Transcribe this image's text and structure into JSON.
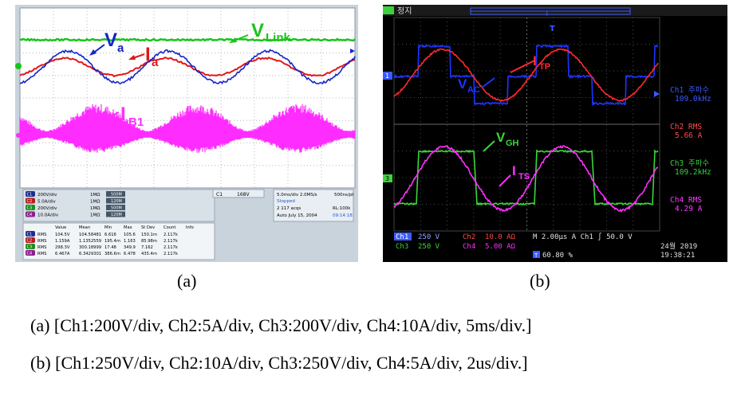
{
  "panel_a": {
    "trace_labels": {
      "vlink": "V",
      "vlink_sub": "Link",
      "va": "V",
      "va_sub": "a",
      "ia": "I",
      "ia_sub": "a",
      "ib1": "I",
      "ib1_sub": "B1"
    },
    "channel_settings": [
      {
        "badge": "C1",
        "scale": "200V/div",
        "imp": "1MΩ",
        "bw": "500M"
      },
      {
        "badge": "C2",
        "scale": "5.0A/div",
        "imp": "1MΩ",
        "bw": "120M"
      },
      {
        "badge": "C3",
        "scale": "200V/div",
        "imp": "1MΩ",
        "bw": "500M"
      },
      {
        "badge": "C4",
        "scale": "10.0A/div",
        "imp": "1MΩ",
        "bw": "120M"
      }
    ],
    "trigger": {
      "badge": "C1",
      "level": "168V"
    },
    "timebase": {
      "line1": "5.0ms/div  2.0MS/s",
      "line1b": "500ns/pt",
      "mode": "Stopped",
      "acqs": "2 117 acqs",
      "rl": "RL:100k",
      "auto": "Auto   July 15, 2004",
      "time": "09:14:18"
    },
    "meas_headers": [
      "Value",
      "Mean",
      "Min",
      "Max",
      "St Dev",
      "Count",
      "Info"
    ],
    "meas_rows": [
      {
        "ch": "C1",
        "type": "RMS",
        "value": "104.5V",
        "mean": "104.58481",
        "min": "6.616",
        "max": "105.6",
        "std": "150.1m",
        "count": "2.117k"
      },
      {
        "ch": "C2",
        "type": "RMS",
        "value": "1.159A",
        "mean": "1.1352559",
        "min": "195.4m",
        "max": "1.163",
        "std": "85.98m",
        "count": "2.117k"
      },
      {
        "ch": "C3",
        "type": "RMS",
        "value": "298.3V",
        "mean": "300.18999",
        "min": "17.48",
        "max": "349.9",
        "std": "7.162",
        "count": "2.117k"
      },
      {
        "ch": "C4",
        "type": "RMS",
        "value": "6.467A",
        "mean": "6.3429301",
        "min": "386.6m",
        "max": "6.478",
        "std": "435.4m",
        "count": "2.117k"
      }
    ],
    "label": "(a)"
  },
  "panel_b": {
    "status": "정지",
    "trace_labels": {
      "itp": "I",
      "itp_sub": "TP",
      "vac": "V",
      "vac_sub": "AC",
      "vgh": "V",
      "vgh_sub": "GH",
      "its": "I",
      "its_sub": "TS"
    },
    "side_readouts": [
      {
        "line1": "Ch1 주파수",
        "line2": "109.0kHz",
        "color": "#3b5bff"
      },
      {
        "line1": "Ch2 RMS",
        "line2": "5.66 A",
        "color": "#ff4a4a"
      },
      {
        "line1": "Ch3 주파수",
        "line2": "109.2kHz",
        "color": "#3cd23c"
      },
      {
        "line1": "Ch4 RMS",
        "line2": "4.29 A",
        "color": "#ff38ff"
      }
    ],
    "bottom": {
      "ch1": "Ch1",
      "ch1_val": "250 V",
      "ch2": "Ch2",
      "ch2_val": "10.0 AΩ",
      "ch3": "Ch3",
      "ch3_val": "250 V",
      "ch4": "Ch4",
      "ch4_val": "5.00 AΩ",
      "timebase": "M 2.00μs  A  Ch1 ∫   50.0 V",
      "percent": "60.80 %",
      "date": "24월  2019",
      "time": "19:38:21"
    },
    "label": "(b)"
  },
  "captions": {
    "a": "(a)  [Ch1:200V/div,  Ch2:5A/div,  Ch3:200V/div,  Ch4:10A/div,  5ms/div.]",
    "b": "(b)  [Ch1:250V/div,  Ch2:10A/div,  Ch3:250V/div,  Ch4:5A/div,    2us/div.]"
  },
  "colors": {
    "a_green": "#19c419",
    "a_blue": "#1525c8",
    "a_red": "#e01818",
    "a_magenta": "#ff2cff",
    "b_blue": "#1e35ff",
    "b_red": "#ff2a2a",
    "b_green": "#3ad63a",
    "b_magenta": "#ff30ff"
  }
}
